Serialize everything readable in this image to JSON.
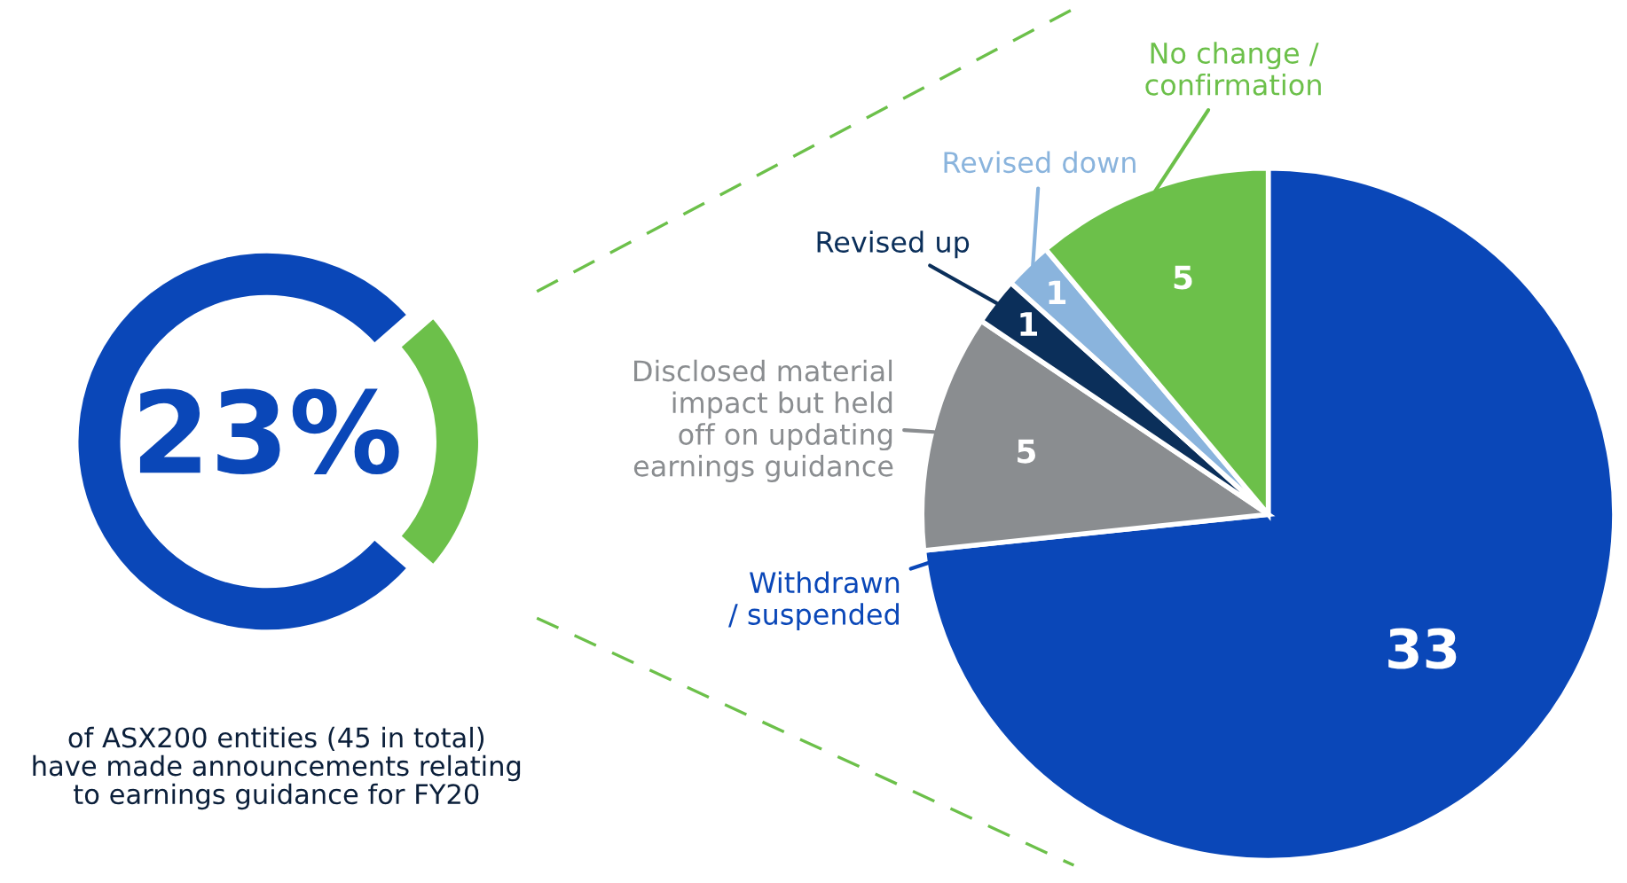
{
  "chart_data": [
    {
      "type": "donut",
      "categories": [
        null,
        null
      ],
      "values": [
        23,
        77
      ],
      "colors": [
        "#6cc04a",
        "#0a47b8"
      ],
      "annotations": [
        "23%",
        "of ASX200 entities (45 in total)\nhave made announcements relating\nto earnings guidance for FY20"
      ]
    },
    {
      "type": "pie",
      "categories": [
        "Withdrawn\n/ suspended",
        "Disclosed material\nimpact but held\noff on updating\nearnings guidance",
        "Revised up",
        "Revised down",
        "No change /\nconfirmation"
      ],
      "values": [
        33,
        5,
        1,
        1,
        5
      ],
      "colors": [
        "#0a47b8",
        "#8a8d90",
        "#0b2f5a",
        "#8ab4dd",
        "#6cc04a"
      ],
      "data_labels": true,
      "legend": false
    }
  ]
}
